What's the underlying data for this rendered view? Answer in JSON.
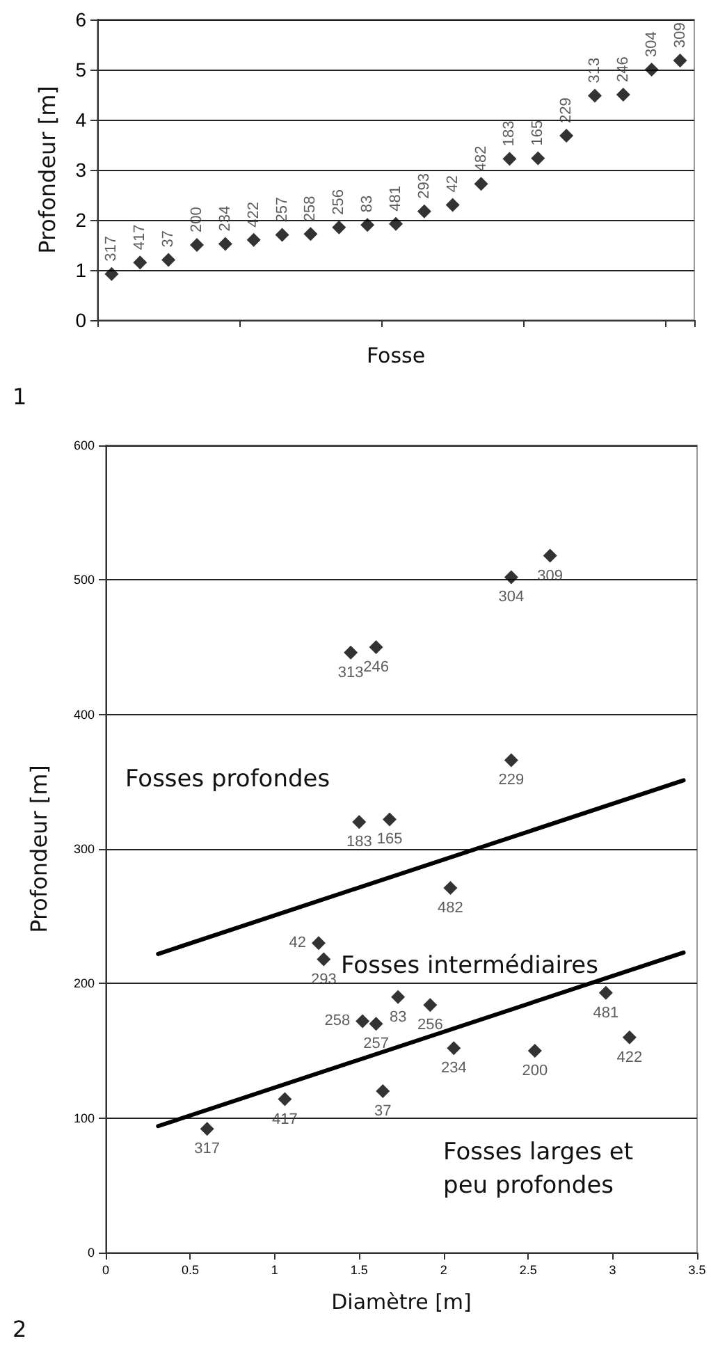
{
  "chart_data": [
    {
      "type": "scatter",
      "title": "1",
      "xlabel": "Fosse",
      "ylabel": "Profondeur [m]",
      "categories": [
        "317",
        "417",
        "37",
        "200",
        "234",
        "422",
        "257",
        "258",
        "256",
        "83",
        "481",
        "293",
        "42",
        "482",
        "183",
        "165",
        "229",
        "313",
        "246",
        "304",
        "309"
      ],
      "values": [
        0.92,
        1.15,
        1.2,
        1.5,
        1.52,
        1.6,
        1.7,
        1.72,
        1.85,
        1.9,
        1.92,
        2.17,
        2.3,
        2.72,
        3.22,
        3.23,
        3.68,
        4.48,
        4.5,
        5.0,
        5.18
      ],
      "color": "#000000",
      "marker": "diamond",
      "ylim": [
        0,
        6
      ],
      "yticks": [
        0,
        1,
        2,
        3,
        4,
        5,
        6
      ],
      "grid": "y",
      "legend": false
    },
    {
      "type": "scatter",
      "title": "2",
      "xlabel": "Diamètre [m]",
      "ylabel": "Profondeur [m]",
      "series": [
        {
          "name": "317",
          "color": "#000000",
          "x": [
            0.6
          ],
          "values": [
            92
          ]
        },
        {
          "name": "417",
          "color": "#000000",
          "x": [
            1.06
          ],
          "values": [
            114
          ]
        },
        {
          "name": "37",
          "color": "#000000",
          "x": [
            1.64
          ],
          "values": [
            120
          ]
        },
        {
          "name": "258",
          "color": "#000000",
          "x": [
            1.52
          ],
          "values": [
            172
          ]
        },
        {
          "name": "257",
          "color": "#000000",
          "x": [
            1.6
          ],
          "values": [
            170
          ]
        },
        {
          "name": "83",
          "color": "#000000",
          "x": [
            1.73
          ],
          "values": [
            190
          ]
        },
        {
          "name": "256",
          "color": "#000000",
          "x": [
            1.92
          ],
          "values": [
            184
          ]
        },
        {
          "name": "234",
          "color": "#000000",
          "x": [
            2.06
          ],
          "values": [
            152
          ]
        },
        {
          "name": "200",
          "color": "#000000",
          "x": [
            2.54
          ],
          "values": [
            150
          ]
        },
        {
          "name": "481",
          "color": "#000000",
          "x": [
            2.96
          ],
          "values": [
            193
          ]
        },
        {
          "name": "422",
          "color": "#000000",
          "x": [
            3.1
          ],
          "values": [
            160
          ]
        },
        {
          "name": "42",
          "color": "#000000",
          "x": [
            1.26
          ],
          "values": [
            230
          ]
        },
        {
          "name": "293",
          "color": "#000000",
          "x": [
            1.29
          ],
          "values": [
            218
          ]
        },
        {
          "name": "482",
          "color": "#000000",
          "x": [
            2.04
          ],
          "values": [
            271
          ]
        },
        {
          "name": "183",
          "color": "#000000",
          "x": [
            1.5
          ],
          "values": [
            320
          ]
        },
        {
          "name": "165",
          "color": "#000000",
          "x": [
            1.68
          ],
          "values": [
            322
          ]
        },
        {
          "name": "229",
          "color": "#000000",
          "x": [
            2.4
          ],
          "values": [
            366
          ]
        },
        {
          "name": "313",
          "color": "#000000",
          "x": [
            1.45
          ],
          "values": [
            446
          ]
        },
        {
          "name": "246",
          "color": "#000000",
          "x": [
            1.6
          ],
          "values": [
            450
          ]
        },
        {
          "name": "304",
          "color": "#000000",
          "x": [
            2.4
          ],
          "values": [
            502
          ]
        },
        {
          "name": "309",
          "color": "#000000",
          "x": [
            2.63
          ],
          "values": [
            518
          ]
        },
        {
          "type": "line",
          "marker": "none",
          "color": "#000000",
          "x": [
            0.31,
            3.42
          ],
          "values": [
            222,
            351
          ]
        },
        {
          "type": "line",
          "marker": "none",
          "color": "#000000",
          "x": [
            0.31,
            3.42
          ],
          "values": [
            94,
            223
          ]
        }
      ],
      "annotations": [
        "Fosses profondes",
        "Fosses intermédiaires",
        "Fosses larges et peu profondes"
      ],
      "marker": "diamond",
      "line_style": "solid",
      "xlim": [
        0,
        3.5
      ],
      "xticks": [
        0,
        0.5,
        1,
        1.5,
        2,
        2.5,
        3,
        3.5
      ],
      "ylim": [
        0,
        600
      ],
      "yticks": [
        0,
        100,
        200,
        300,
        400,
        500,
        600
      ],
      "grid": "y",
      "legend": false
    }
  ]
}
